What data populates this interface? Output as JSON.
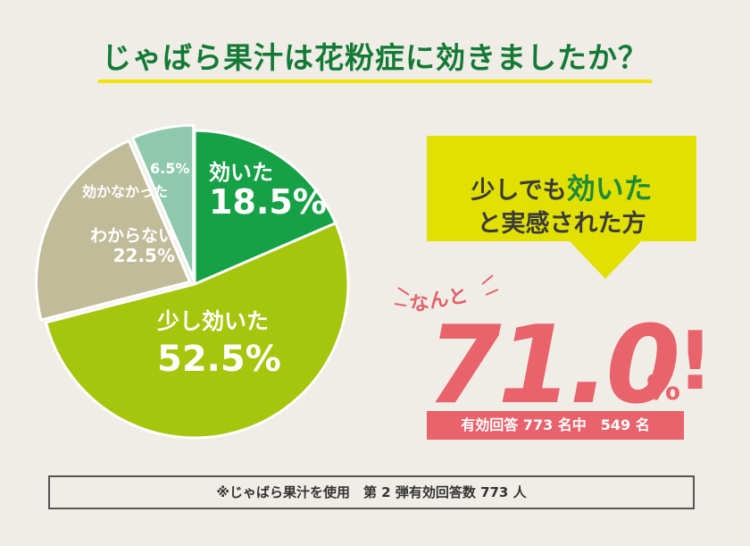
{
  "title": "じゃばら果汁は花粉症に効きましたか？",
  "chart_data": {
    "type": "pie",
    "title": "じゃばら果汁は花粉症に効きましたか？",
    "slices": [
      {
        "label": "効いた",
        "value": 18.5,
        "value_text": "18.5%",
        "color": "#16a146"
      },
      {
        "label": "少し効いた",
        "value": 52.5,
        "value_text": "52.5%",
        "color": "#a5c60c"
      },
      {
        "label": "わからない",
        "value": 22.5,
        "value_text": "22.5%",
        "color": "#c0bb99"
      },
      {
        "label": "効かなかった",
        "value": 6.5,
        "value_text": "6.5%",
        "color": "#8fc9ad"
      }
    ]
  },
  "callout": {
    "line1_prefix": "少しでも",
    "line1_emphasis": "効いた",
    "line2": "と実感された方",
    "nanto": "なんと",
    "big_value": "71.0",
    "big_unit": "%",
    "exclaim": "!",
    "note": "有効回答 773 名中　549 名"
  },
  "footer": "※じゃばら果汁を使用　第 2 弾有効回答数 773 人"
}
